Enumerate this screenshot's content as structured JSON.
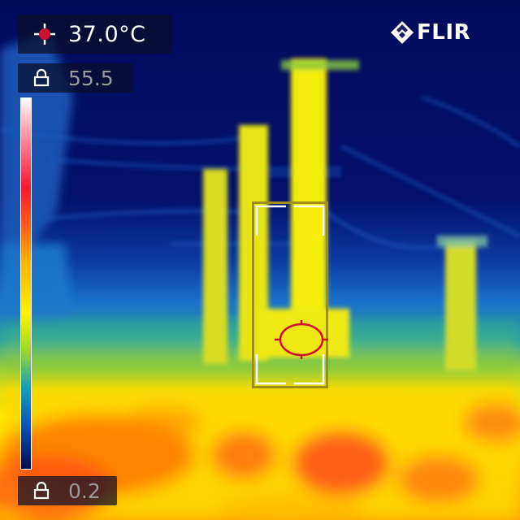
{
  "spot_readout": {
    "icon": "spot-crosshair-icon",
    "value": "37.0°C"
  },
  "scale": {
    "max_icon": "lock-icon",
    "max_value": "55.5",
    "min_icon": "lock-icon",
    "min_value": "0.2"
  },
  "brand": {
    "logo_text": "FLIR"
  },
  "colors": {
    "spot_marker": "#d01030",
    "box_outline": "#a08e1c",
    "box_corners": "#ffffff",
    "scale_top": "#ffffff",
    "scale_bottom": "#000c50"
  }
}
